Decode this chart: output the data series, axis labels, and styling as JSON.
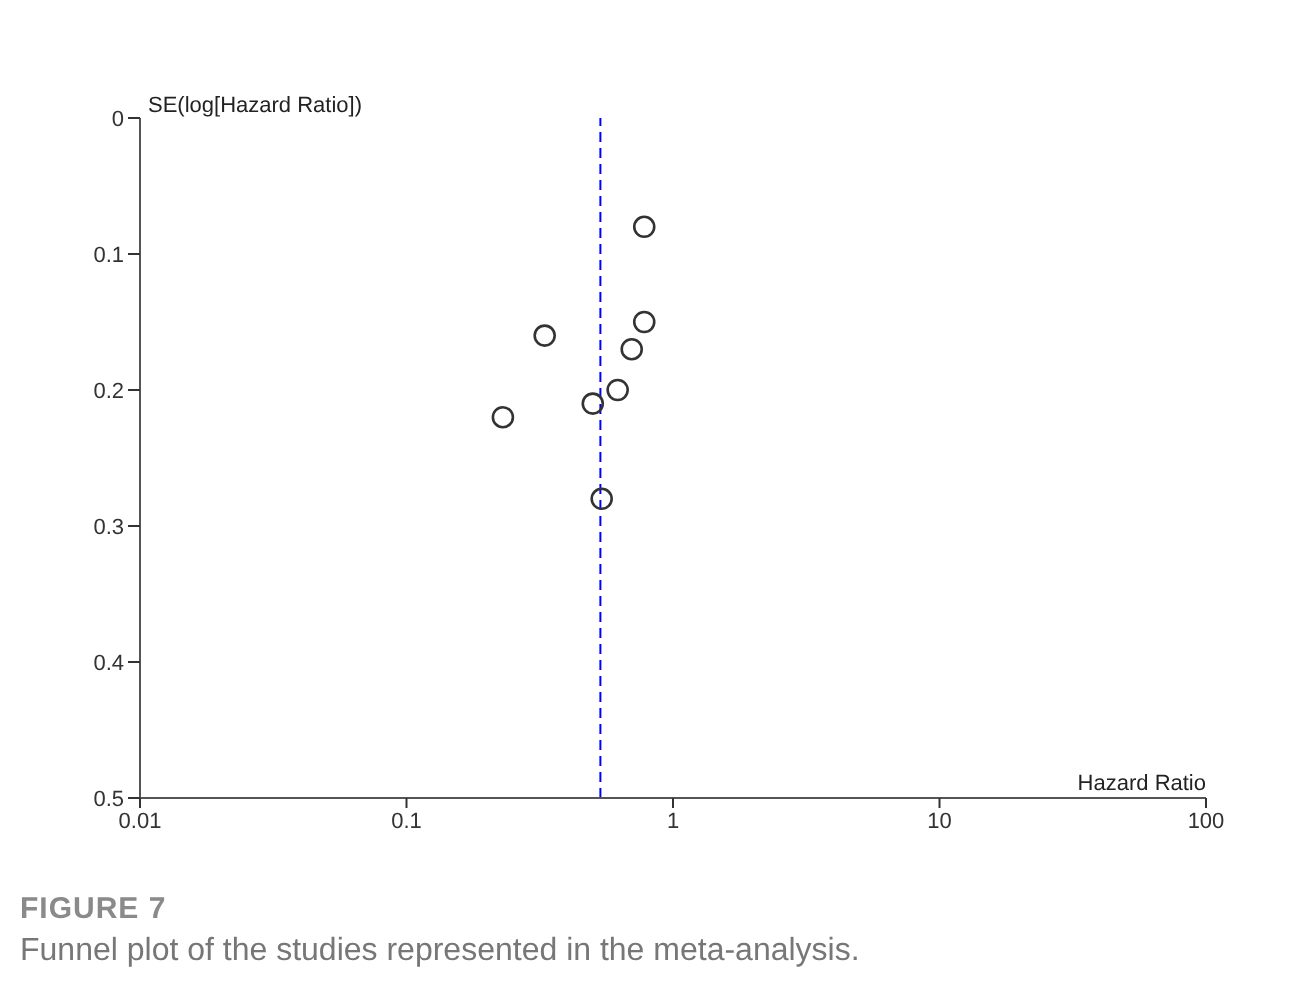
{
  "chart_data": {
    "type": "scatter",
    "title": "FIGURE 7",
    "subtitle": "Funnel plot of the studies represented in the meta-analysis.",
    "xlabel": "Hazard Ratio",
    "ylabel": "SE(log[Hazard Ratio])",
    "x": [
      0.78,
      0.33,
      0.78,
      0.7,
      0.62,
      0.5,
      0.23,
      0.54
    ],
    "series": [
      {
        "color": "#333333",
        "values": [
          0.08,
          0.16,
          0.15,
          0.17,
          0.2,
          0.21,
          0.22,
          0.28
        ]
      }
    ],
    "log": "x",
    "xlim": [
      0.01,
      100
    ],
    "xticks": [
      0.01,
      0.1,
      1,
      10,
      100
    ],
    "ylim": [
      0.5,
      0
    ],
    "yticks": [
      0,
      0.1,
      0.2,
      0.3,
      0.4,
      0.5
    ],
    "ref_lines": [
      {
        "axis": "x",
        "value": 0.534,
        "color": "#0000ff",
        "line_style": "dashed"
      }
    ],
    "marker": "circle",
    "grid": false,
    "legend": false
  }
}
